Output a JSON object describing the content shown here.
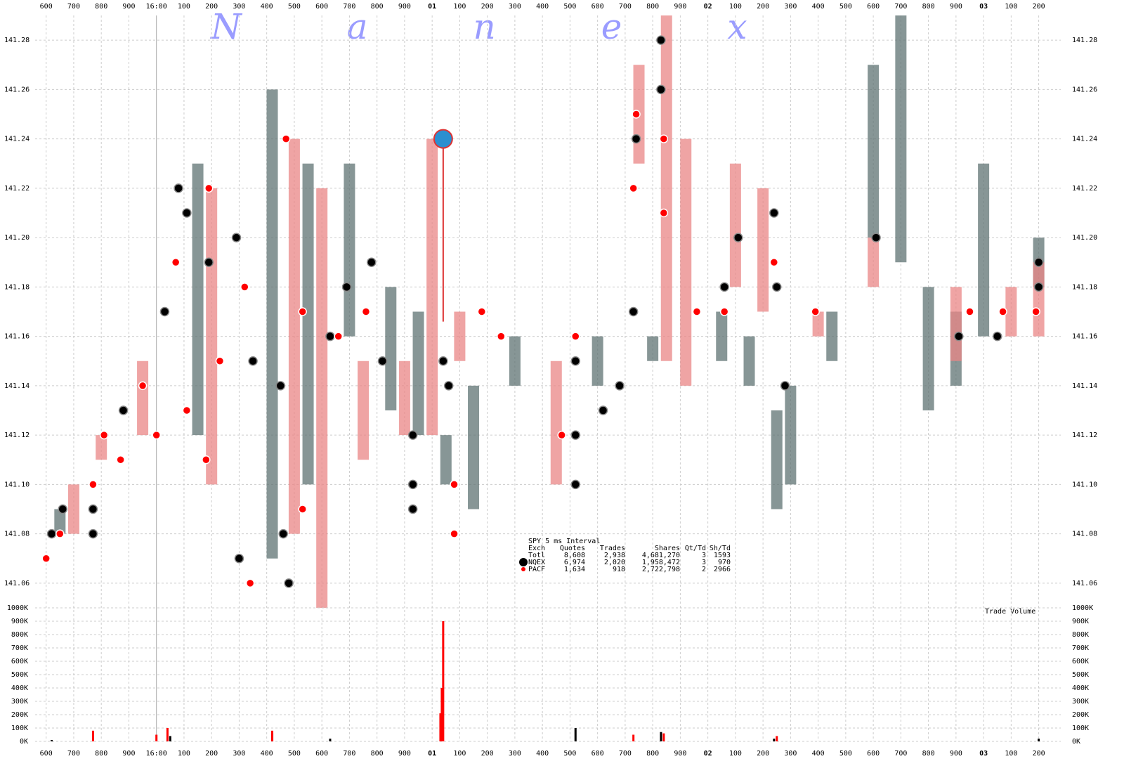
{
  "chart_data": [
    {
      "type": "scatter",
      "watermark": "Nanex",
      "grid": true,
      "xlim": [
        -0.44,
        3.28
      ],
      "xticks": [
        {
          "value": -0.4,
          "label": "600"
        },
        {
          "value": -0.3,
          "label": "700"
        },
        {
          "value": -0.2,
          "label": "800"
        },
        {
          "value": -0.1,
          "label": "900"
        },
        {
          "value": 0,
          "label": "16:00"
        },
        {
          "value": 0.1,
          "label": "100"
        },
        {
          "value": 0.2,
          "label": "200"
        },
        {
          "value": 0.3,
          "label": "300"
        },
        {
          "value": 0.4,
          "label": "400"
        },
        {
          "value": 0.5,
          "label": "500"
        },
        {
          "value": 0.6,
          "label": "600"
        },
        {
          "value": 0.7,
          "label": "700"
        },
        {
          "value": 0.8,
          "label": "800"
        },
        {
          "value": 0.9,
          "label": "900"
        },
        {
          "value": 1,
          "label": "01"
        },
        {
          "value": 1.1,
          "label": "100"
        },
        {
          "value": 1.2,
          "label": "200"
        },
        {
          "value": 1.3,
          "label": "300"
        },
        {
          "value": 1.4,
          "label": "400"
        },
        {
          "value": 1.5,
          "label": "500"
        },
        {
          "value": 1.6,
          "label": "600"
        },
        {
          "value": 1.7,
          "label": "700"
        },
        {
          "value": 1.8,
          "label": "800"
        },
        {
          "value": 1.9,
          "label": "900"
        },
        {
          "value": 2,
          "label": "02"
        },
        {
          "value": 2.1,
          "label": "100"
        },
        {
          "value": 2.2,
          "label": "200"
        },
        {
          "value": 2.3,
          "label": "300"
        },
        {
          "value": 2.4,
          "label": "400"
        },
        {
          "value": 2.5,
          "label": "500"
        },
        {
          "value": 2.6,
          "label": "600"
        },
        {
          "value": 2.7,
          "label": "700"
        },
        {
          "value": 2.8,
          "label": "800"
        },
        {
          "value": 2.9,
          "label": "900"
        },
        {
          "value": 3,
          "label": "03"
        },
        {
          "value": 3.1,
          "label": "100"
        },
        {
          "value": 3.2,
          "label": "200"
        }
      ],
      "ylim": [
        141.05,
        141.29
      ],
      "yticks": [
        {
          "value": 141.06,
          "label": "141.06"
        },
        {
          "value": 141.08,
          "label": "141.08"
        },
        {
          "value": 141.1,
          "label": "141.10"
        },
        {
          "value": 141.12,
          "label": "141.12"
        },
        {
          "value": 141.14,
          "label": "141.14"
        },
        {
          "value": 141.16,
          "label": "141.16"
        },
        {
          "value": 141.18,
          "label": "141.18"
        },
        {
          "value": 141.2,
          "label": "141.20"
        },
        {
          "value": 141.22,
          "label": "141.22"
        },
        {
          "value": 141.24,
          "label": "141.24"
        },
        {
          "value": 141.26,
          "label": "141.26"
        },
        {
          "value": 141.28,
          "label": "141.28"
        }
      ],
      "series": [
        {
          "name": "NQEX",
          "color": "#000000",
          "quote_color": "#5f7373",
          "x": [
            -0.38,
            -0.34,
            -0.23,
            -0.23,
            -0.12,
            0.03,
            0.08,
            0.11,
            0.19,
            0.29,
            0.3,
            0.35,
            0.46,
            0.48,
            0.45,
            0.63,
            0.69,
            0.78,
            0.82,
            0.93,
            0.93,
            0.93,
            1.04,
            1.06,
            1.52,
            1.52,
            1.52,
            1.62,
            1.68,
            1.73,
            1.74,
            1.83,
            1.83,
            2.06,
            2.11,
            2.24,
            2.25,
            2.28,
            2.61,
            2.91,
            3.05,
            3.2,
            3.2
          ],
          "values": [
            141.08,
            141.09,
            141.08,
            141.09,
            141.13,
            141.17,
            141.22,
            141.21,
            141.19,
            141.2,
            141.07,
            141.15,
            141.08,
            141.06,
            141.14,
            141.16,
            141.18,
            141.19,
            141.15,
            141.09,
            141.1,
            141.12,
            141.15,
            141.14,
            141.15,
            141.12,
            141.1,
            141.13,
            141.14,
            141.17,
            141.24,
            141.26,
            141.28,
            141.18,
            141.2,
            141.21,
            141.18,
            141.14,
            141.2,
            141.16,
            141.16,
            141.19,
            141.18
          ],
          "quote_x": [
            -0.35,
            0.15,
            0.42,
            0.55,
            0.7,
            0.85,
            0.95,
            1.05,
            1.15,
            1.3,
            1.6,
            1.8,
            2.05,
            2.15,
            2.25,
            2.3,
            2.45,
            2.6,
            2.7,
            2.8,
            2.9,
            3,
            3.2
          ],
          "quote_low": [
            141.08,
            141.12,
            141.07,
            141.1,
            141.16,
            141.13,
            141.12,
            141.1,
            141.09,
            141.14,
            141.14,
            141.15,
            141.15,
            141.14,
            141.09,
            141.1,
            141.15,
            141.2,
            141.19,
            141.13,
            141.14,
            141.16,
            141.18
          ],
          "quote_high": [
            141.09,
            141.23,
            141.26,
            141.23,
            141.23,
            141.18,
            141.17,
            141.12,
            141.14,
            141.16,
            141.16,
            141.16,
            141.17,
            141.16,
            141.13,
            141.14,
            141.17,
            141.27,
            141.29,
            141.18,
            141.17,
            141.23,
            141.2
          ]
        },
        {
          "name": "PACF",
          "color": "#ff0000",
          "quote_color": "#e98585",
          "x": [
            -0.4,
            -0.35,
            -0.23,
            -0.19,
            -0.13,
            -0.05,
            0,
            0.07,
            0.11,
            0.18,
            0.23,
            0.19,
            0.34,
            0.32,
            0.47,
            0.53,
            0.53,
            0.66,
            0.76,
            1.08,
            1.08,
            1.18,
            1.25,
            1.52,
            1.47,
            1.74,
            1.73,
            1.84,
            1.84,
            1.96,
            2.06,
            2.24,
            2.39,
            2.95,
            3.07,
            3.19
          ],
          "values": [
            141.07,
            141.08,
            141.1,
            141.12,
            141.11,
            141.14,
            141.12,
            141.19,
            141.13,
            141.11,
            141.15,
            141.22,
            141.06,
            141.18,
            141.24,
            141.09,
            141.17,
            141.16,
            141.17,
            141.08,
            141.1,
            141.17,
            141.16,
            141.16,
            141.12,
            141.25,
            141.22,
            141.21,
            141.24,
            141.17,
            141.17,
            141.19,
            141.17,
            141.17,
            141.17,
            141.17
          ],
          "quote_x": [
            -0.3,
            -0.2,
            -0.05,
            0.2,
            0.5,
            0.6,
            0.75,
            0.9,
            1,
            1.1,
            1.45,
            1.75,
            1.85,
            1.92,
            2.1,
            2.2,
            2.4,
            2.6,
            2.9,
            3.1,
            3.2
          ],
          "quote_low": [
            141.08,
            141.11,
            141.12,
            141.1,
            141.08,
            141.05,
            141.11,
            141.12,
            141.12,
            141.15,
            141.1,
            141.23,
            141.15,
            141.14,
            141.18,
            141.17,
            141.16,
            141.18,
            141.15,
            141.16,
            141.16
          ],
          "quote_high": [
            141.1,
            141.12,
            141.15,
            141.22,
            141.24,
            141.22,
            141.15,
            141.15,
            141.24,
            141.17,
            141.15,
            141.27,
            141.29,
            141.24,
            141.23,
            141.22,
            141.17,
            141.2,
            141.18,
            141.18,
            141.19
          ]
        }
      ],
      "highlight": {
        "x": 1.04,
        "value": 141.24,
        "color": "#2a8fd0"
      },
      "legend_table": {
        "title": "SPY 5 ms Interval",
        "headers": [
          "Exch",
          "Quotes",
          "Trades",
          "Shares",
          "Qt/Td",
          "Sh/Td"
        ],
        "rows": [
          [
            "Totl",
            "8,608",
            "2,938",
            "4,681,270",
            "3",
            "1593"
          ],
          [
            "NQEX",
            "6,974",
            "2,020",
            "1,958,472",
            "3",
            "970"
          ],
          [
            "PACF",
            "1,634",
            "918",
            "2,722,798",
            "2",
            "2966"
          ]
        ]
      }
    },
    {
      "type": "bar",
      "title": "Trade Volume",
      "xlim": [
        -0.44,
        3.28
      ],
      "xticks": [
        {
          "value": -0.4,
          "label": "600"
        },
        {
          "value": -0.3,
          "label": "700"
        },
        {
          "value": -0.2,
          "label": "800"
        },
        {
          "value": -0.1,
          "label": "900"
        },
        {
          "value": 0,
          "label": "16:00"
        },
        {
          "value": 0.1,
          "label": "100"
        },
        {
          "value": 0.2,
          "label": "200"
        },
        {
          "value": 0.3,
          "label": "300"
        },
        {
          "value": 0.4,
          "label": "400"
        },
        {
          "value": 0.5,
          "label": "500"
        },
        {
          "value": 0.6,
          "label": "600"
        },
        {
          "value": 0.7,
          "label": "700"
        },
        {
          "value": 0.8,
          "label": "800"
        },
        {
          "value": 0.9,
          "label": "900"
        },
        {
          "value": 1,
          "label": "01"
        },
        {
          "value": 1.1,
          "label": "100"
        },
        {
          "value": 1.2,
          "label": "200"
        },
        {
          "value": 1.3,
          "label": "300"
        },
        {
          "value": 1.4,
          "label": "400"
        },
        {
          "value": 1.5,
          "label": "500"
        },
        {
          "value": 1.6,
          "label": "600"
        },
        {
          "value": 1.7,
          "label": "700"
        },
        {
          "value": 1.8,
          "label": "800"
        },
        {
          "value": 1.9,
          "label": "900"
        },
        {
          "value": 2,
          "label": "02"
        },
        {
          "value": 2.1,
          "label": "100"
        },
        {
          "value": 2.2,
          "label": "200"
        },
        {
          "value": 2.3,
          "label": "300"
        },
        {
          "value": 2.4,
          "label": "400"
        },
        {
          "value": 2.5,
          "label": "500"
        },
        {
          "value": 2.6,
          "label": "600"
        },
        {
          "value": 2.7,
          "label": "700"
        },
        {
          "value": 2.8,
          "label": "800"
        },
        {
          "value": 2.9,
          "label": "900"
        },
        {
          "value": 3,
          "label": "03"
        },
        {
          "value": 3.1,
          "label": "100"
        },
        {
          "value": 3.2,
          "label": "200"
        }
      ],
      "ylim": [
        0,
        1000000
      ],
      "yticks": [
        {
          "value": 0,
          "label": "0K"
        },
        {
          "value": 100000,
          "label": "100K"
        },
        {
          "value": 200000,
          "label": "200K"
        },
        {
          "value": 300000,
          "label": "300K"
        },
        {
          "value": 400000,
          "label": "400K"
        },
        {
          "value": 500000,
          "label": "500K"
        },
        {
          "value": 600000,
          "label": "600K"
        },
        {
          "value": 700000,
          "label": "700K"
        },
        {
          "value": 800000,
          "label": "800K"
        },
        {
          "value": 900000,
          "label": "900K"
        },
        {
          "value": 1000000,
          "label": "1000K"
        }
      ],
      "series": [
        {
          "color": "#000000",
          "x": [
            -0.38,
            0.05,
            0.42,
            0.63,
            1.52,
            1.83,
            2.24,
            3.2
          ],
          "values": [
            10000,
            40000,
            60000,
            20000,
            100000,
            70000,
            20000,
            20000
          ]
        },
        {
          "color": "#ff0000",
          "x": [
            -0.23,
            0,
            0.04,
            0.42,
            1.03,
            1.035,
            1.04,
            1.73,
            1.84,
            2.25
          ],
          "values": [
            80000,
            50000,
            100000,
            80000,
            210000,
            400000,
            900000,
            50000,
            60000,
            40000
          ]
        }
      ]
    }
  ]
}
